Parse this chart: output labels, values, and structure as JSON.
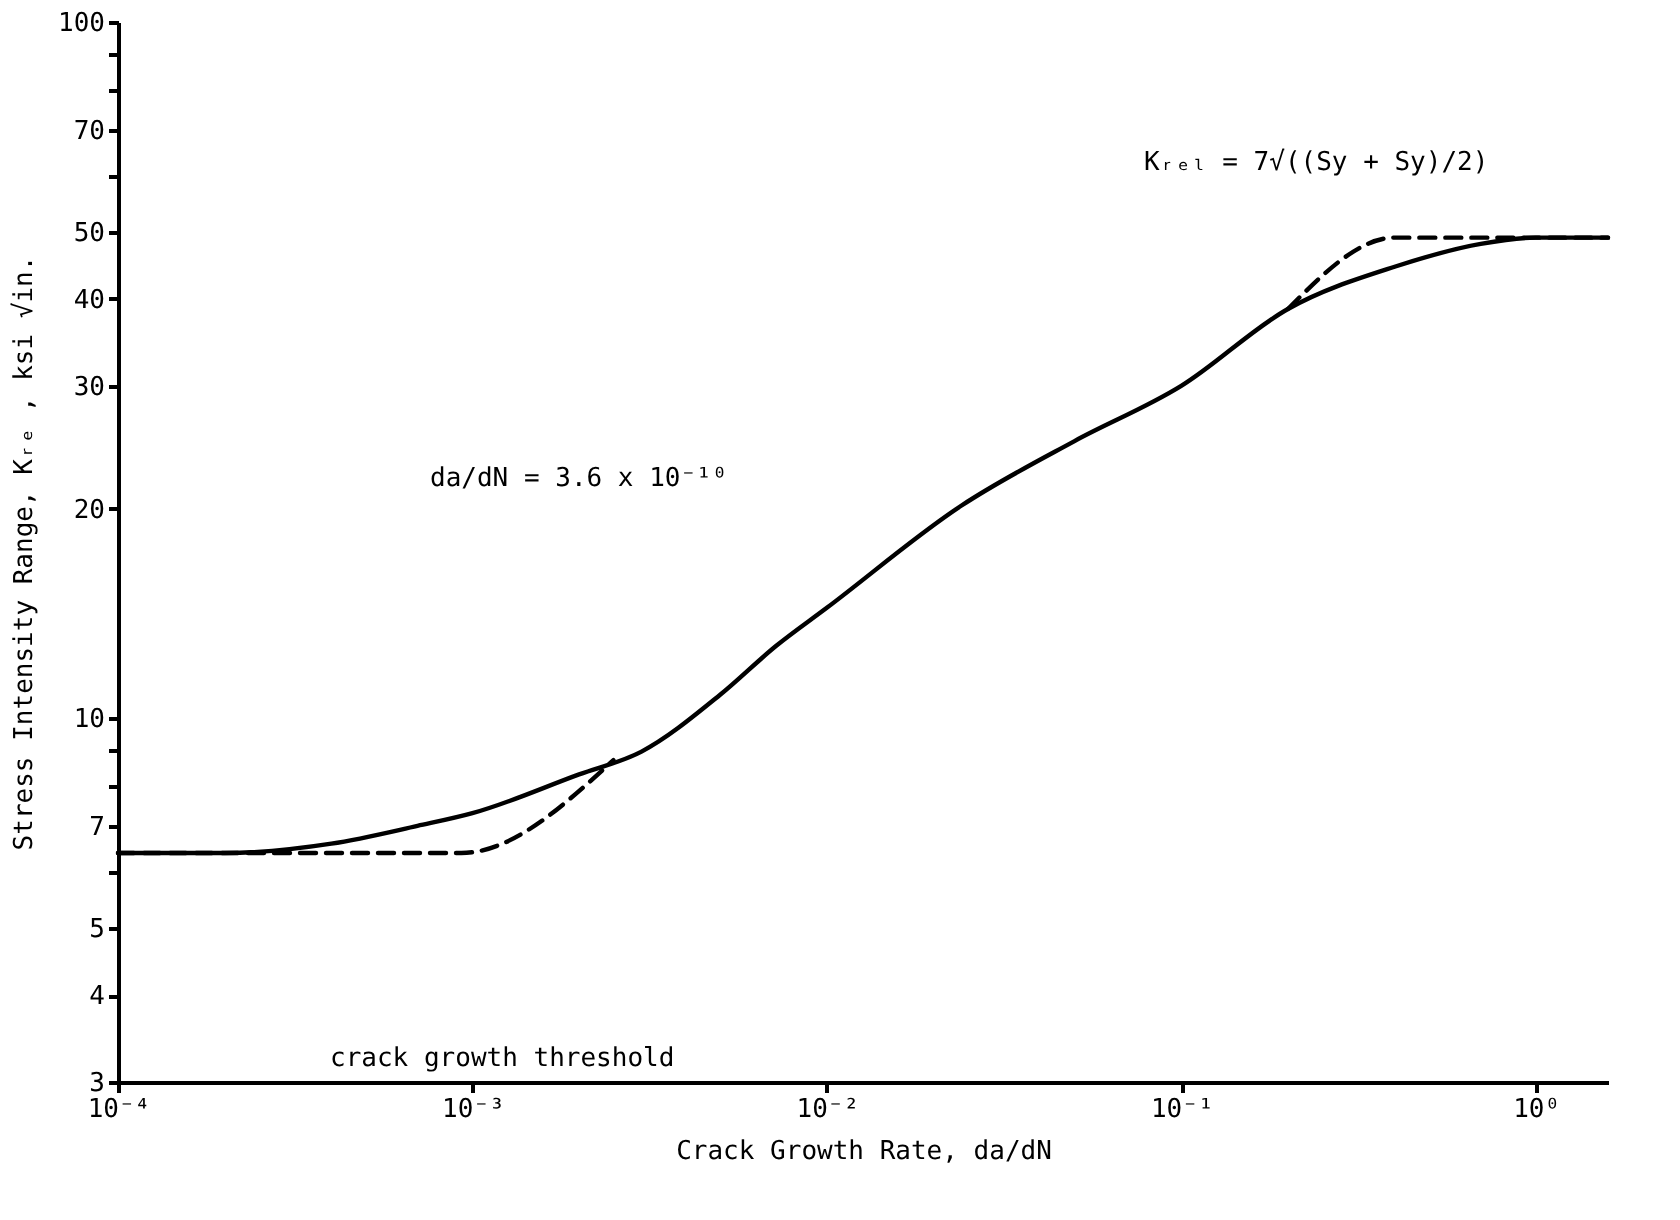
{
  "chart_data": {
    "type": "line",
    "log": "xy",
    "grid": false,
    "marker": "none",
    "xlabel": "Crack Growth Rate, da/dN",
    "ylabel": "Stress Intensity Range, Kᵣₑ , ksi √in.",
    "xlim": [
      0.0001,
      1.6
    ],
    "xticks": [
      {
        "value": 0.0001,
        "label": "10⁻⁴"
      },
      {
        "value": 0.001,
        "label": "10⁻³"
      },
      {
        "value": 0.01,
        "label": "10⁻²"
      },
      {
        "value": 0.1,
        "label": "10⁻¹"
      },
      {
        "value": 1,
        "label": "10⁰"
      }
    ],
    "ylim": [
      3,
      100
    ],
    "yticks": [
      3,
      4,
      5,
      {
        "value": 6,
        "label": null
      },
      7,
      {
        "value": 8,
        "label": null
      },
      {
        "value": 9,
        "label": null
      },
      10,
      20,
      30,
      40,
      50,
      {
        "value": 60,
        "label": null
      },
      70,
      {
        "value": 80,
        "label": null
      },
      {
        "value": 90,
        "label": null
      },
      100
    ],
    "series": [
      {
        "color": "#000000",
        "line_style": "solid",
        "x": [
          0.0001,
          0.0002,
          0.0004,
          0.0007,
          0.001,
          0.002,
          0.003,
          0.005,
          0.0072,
          0.01,
          0.024,
          0.05,
          0.1,
          0.2,
          0.4,
          0.7,
          1.0,
          1.6
        ],
        "values": [
          6.4,
          6.4,
          6.6,
          7.0,
          7.3,
          8.3,
          8.95,
          10.8,
          12.7,
          14.4,
          20.2,
          25.0,
          30,
          38.7,
          44.5,
          48,
          49,
          49
        ]
      },
      {
        "color": "#000000",
        "line_style": "dashed",
        "x": [
          0.0001,
          0.00093,
          0.0025
        ],
        "values": [
          6.4,
          6.4,
          8.7
        ]
      },
      {
        "color": "#000000",
        "line_style": "dashed",
        "x": [
          0.2,
          0.4,
          1.6
        ],
        "values": [
          38.7,
          49,
          49
        ]
      }
    ],
    "annotations": [
      "da/dN = 3.6 x 10⁻¹⁰",
      "crack growth threshold",
      "Kᵣₑₗ = 7√((Sy + Sy)/2)"
    ]
  }
}
